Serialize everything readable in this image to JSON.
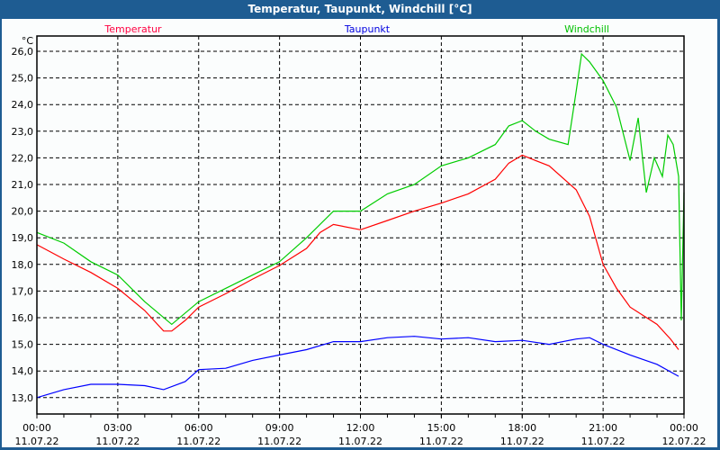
{
  "window": {
    "title": "Temperatur, Taupunkt, Windchill [°C]"
  },
  "chart_data": {
    "type": "line",
    "title": "Temperatur, Taupunkt, Windchill [°C]",
    "ylabel": "°C",
    "xlabel": "",
    "ylim": [
      12.35,
      26.55
    ],
    "xlim_hours": [
      0,
      24
    ],
    "grid": true,
    "y_ticks": [
      "13,0",
      "14,0",
      "15,0",
      "16,0",
      "17,0",
      "18,0",
      "19,0",
      "20,0",
      "21,0",
      "22,0",
      "23,0",
      "24,0",
      "25,0",
      "26,0"
    ],
    "y_tick_values": [
      13,
      14,
      15,
      16,
      17,
      18,
      19,
      20,
      21,
      22,
      23,
      24,
      25,
      26
    ],
    "x_ticks": [
      {
        "hour": 0,
        "time": "00:00",
        "date": "11.07.22"
      },
      {
        "hour": 3,
        "time": "03:00",
        "date": "11.07.22"
      },
      {
        "hour": 6,
        "time": "06:00",
        "date": "11.07.22"
      },
      {
        "hour": 9,
        "time": "09:00",
        "date": "11.07.22"
      },
      {
        "hour": 12,
        "time": "12:00",
        "date": "11.07.22"
      },
      {
        "hour": 15,
        "time": "15:00",
        "date": "11.07.22"
      },
      {
        "hour": 18,
        "time": "18:00",
        "date": "11.07.22"
      },
      {
        "hour": 21,
        "time": "21:00",
        "date": "11.07.22"
      },
      {
        "hour": 24,
        "time": "00:00",
        "date": "12.07.22"
      }
    ],
    "series": [
      {
        "name": "Temperatur",
        "color": "#ff0000",
        "label_color": "#ff0040",
        "x": [
          0,
          1,
          2,
          3,
          4,
          4.7,
          5,
          5.5,
          6,
          7,
          8,
          9,
          10,
          10.5,
          11,
          12,
          13,
          14,
          15,
          16,
          17,
          17.5,
          18,
          18.5,
          19,
          20,
          20.5,
          21,
          21.5,
          22,
          23,
          23.5,
          23.8
        ],
        "y": [
          18.74,
          18.2,
          17.7,
          17.1,
          16.27,
          15.5,
          15.5,
          15.9,
          16.4,
          16.9,
          17.45,
          17.96,
          18.6,
          19.2,
          19.5,
          19.3,
          19.65,
          20.0,
          20.3,
          20.65,
          21.2,
          21.8,
          22.1,
          21.9,
          21.7,
          20.8,
          19.8,
          18.0,
          17.1,
          16.4,
          15.75,
          15.2,
          14.8
        ]
      },
      {
        "name": "Taupunkt",
        "color": "#0000ff",
        "label_color": "#0000e0",
        "x": [
          0,
          1,
          2,
          3,
          4,
          4.7,
          5.5,
          6,
          7,
          8,
          9,
          10,
          11,
          12,
          13,
          14,
          15,
          16,
          17,
          18,
          19,
          20,
          20.5,
          21,
          22,
          23,
          23.8
        ],
        "y": [
          13.0,
          13.3,
          13.5,
          13.5,
          13.45,
          13.3,
          13.6,
          14.05,
          14.1,
          14.4,
          14.6,
          14.8,
          15.1,
          15.1,
          15.25,
          15.3,
          15.2,
          15.25,
          15.1,
          15.15,
          15.0,
          15.2,
          15.25,
          15.0,
          14.6,
          14.25,
          13.8
        ]
      },
      {
        "name": "Windchill",
        "color": "#00cc00",
        "label_color": "#00c000",
        "x": [
          0,
          1,
          2,
          3,
          4,
          5,
          6,
          7,
          8,
          9,
          10,
          11,
          12,
          13,
          14,
          15,
          16,
          17,
          17.5,
          18,
          18.5,
          19,
          19.7,
          20,
          20.2,
          20.5,
          21,
          21.5,
          22,
          22.3,
          22.6,
          22.9,
          23.2,
          23.4,
          23.6,
          23.8,
          23.9,
          24.0
        ],
        "y": [
          19.2,
          18.8,
          18.1,
          17.6,
          16.6,
          15.75,
          16.6,
          17.1,
          17.6,
          18.1,
          19.0,
          20.0,
          20.0,
          20.65,
          21.0,
          21.7,
          22.0,
          22.5,
          23.2,
          23.4,
          23.0,
          22.7,
          22.5,
          24.5,
          25.9,
          25.6,
          24.9,
          23.9,
          21.9,
          23.5,
          20.7,
          22.0,
          21.3,
          22.85,
          22.5,
          21.3,
          15.9,
          20.7
        ]
      }
    ]
  }
}
